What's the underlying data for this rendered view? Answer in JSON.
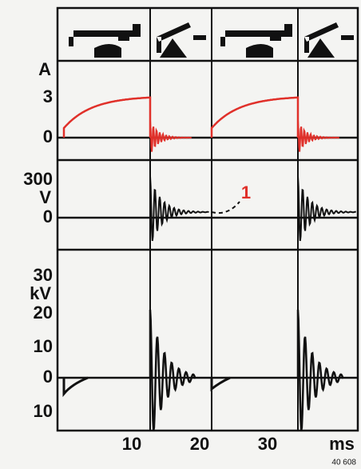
{
  "panels": [
    {
      "unit": "A",
      "ticks": [
        "3",
        "0"
      ]
    },
    {
      "unit": "V",
      "ticks": [
        "300",
        "0"
      ]
    },
    {
      "unit": "kV",
      "ticks": [
        "30",
        "20",
        "10",
        "0",
        "10"
      ]
    }
  ],
  "x_axis": {
    "ticks": [
      "10",
      "20",
      "30"
    ],
    "unit": "ms"
  },
  "annotation": "1",
  "code": "40 608"
}
